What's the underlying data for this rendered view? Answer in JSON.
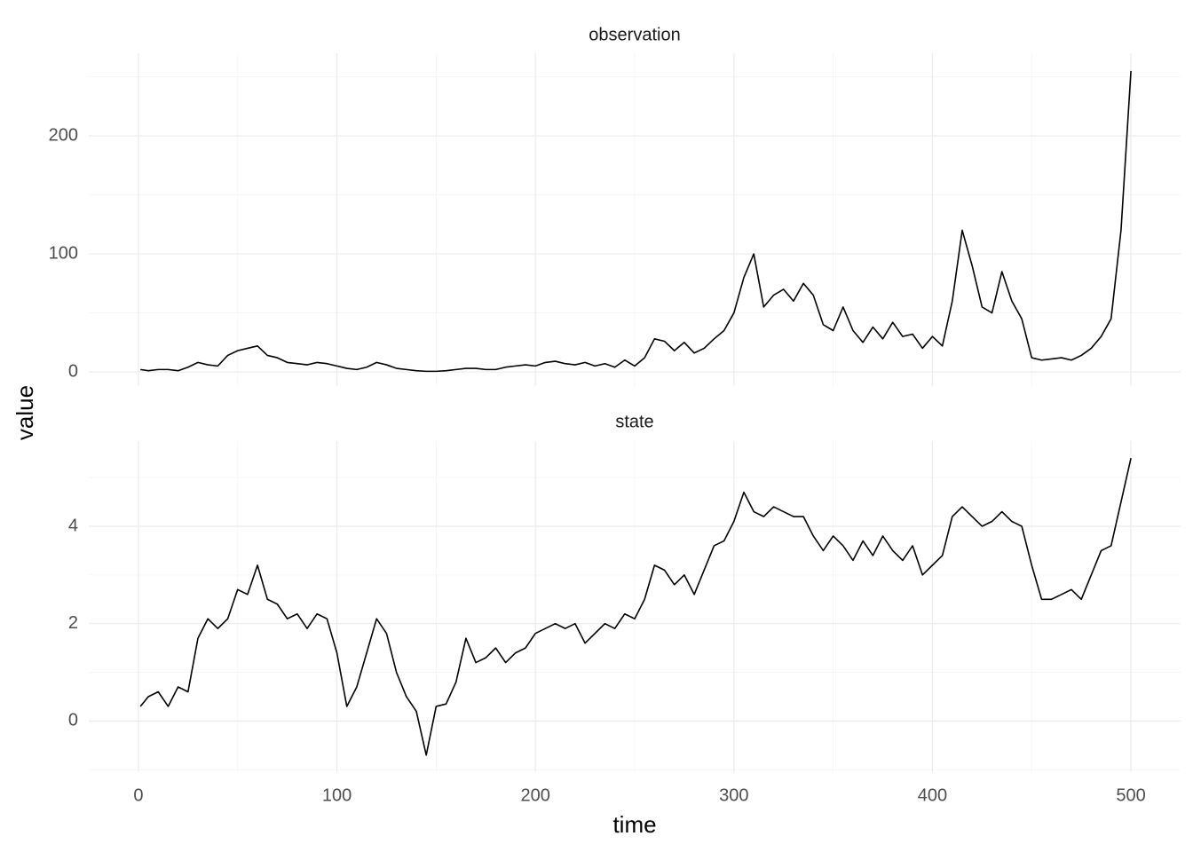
{
  "chart_data": [
    {
      "type": "line",
      "title": "observation",
      "ylabel": "value",
      "color": "#000000",
      "grid": true,
      "show_xtick_labels": false,
      "x": [
        1,
        5,
        10,
        15,
        20,
        25,
        30,
        35,
        40,
        45,
        50,
        55,
        60,
        65,
        70,
        75,
        80,
        85,
        90,
        95,
        100,
        105,
        110,
        115,
        120,
        125,
        130,
        135,
        140,
        145,
        150,
        155,
        160,
        165,
        170,
        175,
        180,
        185,
        190,
        195,
        200,
        205,
        210,
        215,
        220,
        225,
        230,
        235,
        240,
        245,
        250,
        255,
        260,
        265,
        270,
        275,
        280,
        285,
        290,
        295,
        300,
        305,
        310,
        315,
        320,
        325,
        330,
        335,
        340,
        345,
        350,
        355,
        360,
        365,
        370,
        375,
        380,
        385,
        390,
        395,
        400,
        405,
        410,
        415,
        420,
        425,
        430,
        435,
        440,
        445,
        450,
        455,
        460,
        465,
        470,
        475,
        480,
        485,
        490,
        495,
        500
      ],
      "values": [
        2,
        1,
        2,
        2,
        1,
        4,
        8,
        6,
        5,
        14,
        18,
        20,
        22,
        14,
        12,
        8,
        7,
        6,
        8,
        7,
        5,
        3,
        2,
        4,
        8,
        6,
        3,
        2,
        1,
        0.5,
        0.5,
        1,
        2,
        3,
        3,
        2,
        2,
        4,
        5,
        6,
        5,
        8,
        9,
        7,
        6,
        8,
        5,
        7,
        4,
        10,
        5,
        12,
        28,
        26,
        18,
        25,
        16,
        20,
        28,
        35,
        50,
        80,
        100,
        55,
        65,
        70,
        60,
        75,
        65,
        40,
        35,
        55,
        35,
        25,
        38,
        28,
        42,
        30,
        32,
        20,
        30,
        22,
        60,
        120,
        90,
        55,
        50,
        85,
        60,
        45,
        12,
        10,
        11,
        12,
        10,
        14,
        20,
        30,
        45,
        120,
        255
      ],
      "xlim": [
        -25,
        525
      ],
      "ylim": [
        -12,
        270
      ],
      "xticks": [
        0,
        100,
        200,
        300,
        400,
        500
      ],
      "yticks": [
        0,
        100,
        200
      ],
      "minor_xticks": [
        50,
        150,
        250,
        350,
        450
      ],
      "minor_yticks": [
        50,
        150,
        250
      ]
    },
    {
      "type": "line",
      "title": "state",
      "xlabel": "time",
      "color": "#000000",
      "grid": true,
      "show_xtick_labels": true,
      "x": [
        1,
        5,
        10,
        15,
        20,
        25,
        30,
        35,
        40,
        45,
        50,
        55,
        60,
        65,
        70,
        75,
        80,
        85,
        90,
        95,
        100,
        105,
        110,
        115,
        120,
        125,
        130,
        135,
        140,
        145,
        150,
        155,
        160,
        165,
        170,
        175,
        180,
        185,
        190,
        195,
        200,
        205,
        210,
        215,
        220,
        225,
        230,
        235,
        240,
        245,
        250,
        255,
        260,
        265,
        270,
        275,
        280,
        285,
        290,
        295,
        300,
        305,
        310,
        315,
        320,
        325,
        330,
        335,
        340,
        345,
        350,
        355,
        360,
        365,
        370,
        375,
        380,
        385,
        390,
        395,
        400,
        405,
        410,
        415,
        420,
        425,
        430,
        435,
        440,
        445,
        450,
        455,
        460,
        465,
        470,
        475,
        480,
        485,
        490,
        495,
        500
      ],
      "values": [
        0.3,
        0.5,
        0.6,
        0.3,
        0.7,
        0.6,
        1.7,
        2.1,
        1.9,
        2.1,
        2.7,
        2.6,
        3.2,
        2.5,
        2.4,
        2.1,
        2.2,
        1.9,
        2.2,
        2.1,
        1.4,
        0.3,
        0.7,
        1.4,
        2.1,
        1.8,
        1.0,
        0.5,
        0.2,
        -0.7,
        0.3,
        0.35,
        0.8,
        1.7,
        1.2,
        1.3,
        1.5,
        1.2,
        1.4,
        1.5,
        1.8,
        1.9,
        2.0,
        1.9,
        2.0,
        1.6,
        1.8,
        2.0,
        1.9,
        2.2,
        2.1,
        2.5,
        3.2,
        3.1,
        2.8,
        3.0,
        2.6,
        3.1,
        3.6,
        3.7,
        4.1,
        4.7,
        4.3,
        4.2,
        4.4,
        4.3,
        4.2,
        4.2,
        3.8,
        3.5,
        3.8,
        3.6,
        3.3,
        3.7,
        3.4,
        3.8,
        3.5,
        3.3,
        3.6,
        3.0,
        3.2,
        3.4,
        4.2,
        4.4,
        4.2,
        4.0,
        4.1,
        4.3,
        4.1,
        4.0,
        3.2,
        2.5,
        2.5,
        2.6,
        2.7,
        2.5,
        3.0,
        3.5,
        3.6,
        4.5,
        5.4
      ],
      "xlim": [
        -25,
        525
      ],
      "ylim": [
        -1.05,
        5.75
      ],
      "xticks": [
        0,
        100,
        200,
        300,
        400,
        500
      ],
      "yticks": [
        0,
        2,
        4
      ],
      "minor_xticks": [
        50,
        150,
        250,
        350,
        450
      ],
      "minor_yticks": [
        -1,
        1,
        3,
        5
      ]
    }
  ]
}
